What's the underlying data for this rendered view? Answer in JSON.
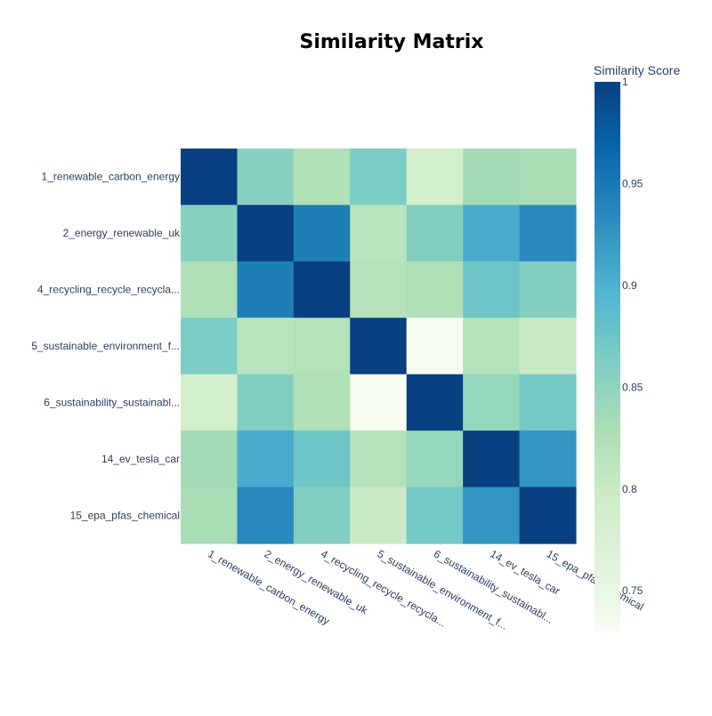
{
  "chart_data": {
    "type": "heatmap",
    "title": "Similarity Matrix",
    "labels": [
      "1_renewable_carbon_energy",
      "2_energy_renewable_uk",
      "4_recycling_recycle_recycla...",
      "5_sustainable_environment_f...",
      "6_sustainability_sustainabl...",
      "14_ev_tesla_car",
      "15_epa_pfas_chemical"
    ],
    "values": [
      [
        1.0,
        0.855,
        0.825,
        0.865,
        0.785,
        0.835,
        0.83
      ],
      [
        0.855,
        1.0,
        0.945,
        0.815,
        0.86,
        0.905,
        0.935
      ],
      [
        0.825,
        0.945,
        1.0,
        0.82,
        0.825,
        0.875,
        0.86
      ],
      [
        0.865,
        0.815,
        0.82,
        1.0,
        0.73,
        0.82,
        0.8
      ],
      [
        0.785,
        0.86,
        0.825,
        0.73,
        1.0,
        0.845,
        0.87
      ],
      [
        0.835,
        0.905,
        0.875,
        0.82,
        0.845,
        1.0,
        0.925
      ],
      [
        0.83,
        0.935,
        0.86,
        0.8,
        0.87,
        0.925,
        1.0
      ]
    ],
    "colorbar": {
      "title": "Similarity Score",
      "zmin": 0.73,
      "zmax": 1.0,
      "ticks": [
        0.75,
        0.8,
        0.85,
        0.9,
        0.95,
        1
      ],
      "tick_labels": [
        "0.75",
        "0.8",
        "0.85",
        "0.9",
        "0.95",
        "1"
      ]
    },
    "colorscale": [
      "#f7fcf0",
      "#e0f3db",
      "#ccebc5",
      "#a8ddb5",
      "#7bccc4",
      "#4eb3d3",
      "#2b8cbe",
      "#0868ac",
      "#084081"
    ]
  }
}
